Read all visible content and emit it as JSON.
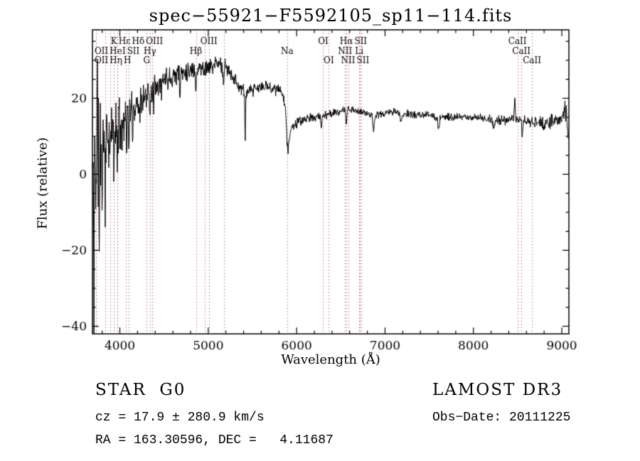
{
  "title": "spec−55921−F5592105_sp11−114.fits",
  "annotations": {
    "object_class": "STAR  G0",
    "survey": "LAMOST DR3",
    "cz_line": "cz = 17.9 ± 280.9 km/s",
    "obs_date": "Obs−Date: 20111225",
    "ra_dec": "RA = 163.30596, DEC =   4.11687"
  },
  "chart_data": {
    "type": "line",
    "title": "spec−55921−F5592105_sp11−114.fits",
    "xlabel": "Wavelength (Å)",
    "ylabel": "Flux (relative)",
    "xlim": [
      3690,
      9080
    ],
    "ylim": [
      -42,
      38
    ],
    "xticks": [
      4000,
      5000,
      6000,
      7000,
      8000,
      9000
    ],
    "yticks": [
      -40,
      -20,
      0,
      20
    ],
    "x_minor_step": 200,
    "y_minor_step": 5,
    "grid": false,
    "legend": "none",
    "line_color": "#000000",
    "marker_line_color": "#c06a6a",
    "label_color": "#000000",
    "background": "#ffffff",
    "noise_seed": 11,
    "sample_step_angstrom": 4,
    "continuum": [
      [
        3690,
        0
      ],
      [
        3720,
        3
      ],
      [
        3760,
        6
      ],
      [
        3800,
        8
      ],
      [
        3850,
        10
      ],
      [
        3900,
        11
      ],
      [
        3950,
        12
      ],
      [
        4000,
        13
      ],
      [
        4050,
        15
      ],
      [
        4100,
        16
      ],
      [
        4150,
        17
      ],
      [
        4200,
        19
      ],
      [
        4250,
        20
      ],
      [
        4300,
        21
      ],
      [
        4350,
        22
      ],
      [
        4400,
        24
      ],
      [
        4500,
        25
      ],
      [
        4600,
        26
      ],
      [
        4700,
        27
      ],
      [
        4800,
        27.5
      ],
      [
        4900,
        28
      ],
      [
        5000,
        28
      ],
      [
        5100,
        29
      ],
      [
        5150,
        29
      ],
      [
        5200,
        28
      ],
      [
        5250,
        27
      ],
      [
        5300,
        25
      ],
      [
        5350,
        23
      ],
      [
        5400,
        22
      ],
      [
        5450,
        21.5
      ],
      [
        5500,
        22
      ],
      [
        5550,
        22.5
      ],
      [
        5600,
        23
      ],
      [
        5700,
        23
      ],
      [
        5800,
        22
      ],
      [
        5850,
        21
      ],
      [
        5880,
        17
      ],
      [
        5900,
        9
      ],
      [
        5920,
        10.5
      ],
      [
        5950,
        12.5
      ],
      [
        6000,
        13.5
      ],
      [
        6100,
        14.5
      ],
      [
        6200,
        15
      ],
      [
        6300,
        15.5
      ],
      [
        6400,
        16
      ],
      [
        6500,
        16.5
      ],
      [
        6600,
        17
      ],
      [
        6700,
        16.5
      ],
      [
        6800,
        16
      ],
      [
        6900,
        15.5
      ],
      [
        7000,
        16
      ],
      [
        7100,
        16.5
      ],
      [
        7200,
        16
      ],
      [
        7300,
        15.8
      ],
      [
        7400,
        15.5
      ],
      [
        7500,
        15.5
      ],
      [
        7600,
        15.2
      ],
      [
        7700,
        15
      ],
      [
        7800,
        15
      ],
      [
        7900,
        15
      ],
      [
        8000,
        15
      ],
      [
        8100,
        14.8
      ],
      [
        8200,
        14.5
      ],
      [
        8300,
        14.2
      ],
      [
        8400,
        14
      ],
      [
        8500,
        14.5
      ],
      [
        8600,
        14
      ],
      [
        8700,
        13.5
      ],
      [
        8800,
        13.5
      ],
      [
        8900,
        14
      ],
      [
        8960,
        14.5
      ],
      [
        9000,
        14.5
      ],
      [
        9040,
        17
      ],
      [
        9060,
        14
      ],
      [
        9080,
        5
      ]
    ],
    "noise_envelope": [
      [
        3690,
        26
      ],
      [
        3720,
        24
      ],
      [
        3760,
        20
      ],
      [
        3800,
        15
      ],
      [
        3850,
        12
      ],
      [
        3900,
        10
      ],
      [
        3950,
        9
      ],
      [
        4000,
        8
      ],
      [
        4100,
        6
      ],
      [
        4200,
        5
      ],
      [
        4300,
        4.5
      ],
      [
        4400,
        4
      ],
      [
        4600,
        3.5
      ],
      [
        4800,
        3
      ],
      [
        5000,
        2.8
      ],
      [
        5200,
        2.5
      ],
      [
        5400,
        2.2
      ],
      [
        5600,
        2
      ],
      [
        5800,
        1.8
      ],
      [
        6000,
        1.6
      ],
      [
        6200,
        1.4
      ],
      [
        6500,
        1.2
      ],
      [
        7000,
        1.1
      ],
      [
        7500,
        1.2
      ],
      [
        8000,
        1.3
      ],
      [
        8400,
        1.6
      ],
      [
        8700,
        2
      ],
      [
        8900,
        2.6
      ],
      [
        9000,
        3
      ],
      [
        9080,
        4
      ]
    ],
    "features": [
      [
        3706,
        -42,
        3
      ],
      [
        3745,
        18,
        2.5
      ],
      [
        3768,
        -30,
        3
      ],
      [
        3800,
        -16,
        2.5
      ],
      [
        3835,
        -14,
        3
      ],
      [
        3890,
        -12,
        3
      ],
      [
        3934,
        -10,
        4
      ],
      [
        3970,
        -9,
        4
      ],
      [
        4026,
        -8,
        3
      ],
      [
        4077,
        -7,
        3
      ],
      [
        4102,
        -7,
        5
      ],
      [
        4144,
        -6,
        3
      ],
      [
        4227,
        -7,
        3
      ],
      [
        4260,
        -5,
        3
      ],
      [
        4340,
        -6,
        5
      ],
      [
        4383,
        -6,
        3
      ],
      [
        4471,
        -5,
        3
      ],
      [
        4680,
        -8,
        4
      ],
      [
        4861,
        -5,
        6
      ],
      [
        5170,
        -4,
        8
      ],
      [
        5418,
        -14,
        4
      ],
      [
        5893,
        -4,
        12
      ],
      [
        6280,
        -3.5,
        5
      ],
      [
        6563,
        -3.5,
        5
      ],
      [
        6870,
        -4,
        8
      ],
      [
        7180,
        -2,
        12
      ],
      [
        7605,
        -3,
        10
      ],
      [
        8230,
        -2,
        10
      ],
      [
        8468,
        7,
        5
      ],
      [
        8552,
        -4,
        6
      ],
      [
        8800,
        -2,
        8
      ]
    ],
    "spectral_lines": [
      {
        "wavelength": 3727,
        "label": "OII",
        "row": 2
      },
      {
        "wavelength": 3729,
        "label": "OII",
        "row": 3
      },
      {
        "wavelength": 3835,
        "label": "Hη",
        "row": 3
      },
      {
        "wavelength": 3889,
        "label": "HeI",
        "row": 2
      },
      {
        "wavelength": 3934,
        "label": "K",
        "row": 1
      },
      {
        "wavelength": 3968,
        "label": "H",
        "row": 3
      },
      {
        "wavelength": 3970,
        "label": "Hε",
        "row": 1
      },
      {
        "wavelength": 4072,
        "label": "SII",
        "row": 2
      },
      {
        "wavelength": 4102,
        "label": "Hδ",
        "row": 1
      },
      {
        "wavelength": 4304,
        "label": "G",
        "row": 3
      },
      {
        "wavelength": 4340,
        "label": "Hγ",
        "row": 2
      },
      {
        "wavelength": 4363,
        "label": "OIII",
        "row": 1
      },
      {
        "wavelength": 4861,
        "label": "Hβ",
        "row": 2
      },
      {
        "wavelength": 4959,
        "label": "",
        "row": 0
      },
      {
        "wavelength": 5007,
        "label": "OIII",
        "row": 1
      },
      {
        "wavelength": 5175,
        "label": "",
        "row": 0
      },
      {
        "wavelength": 5893,
        "label": "Na",
        "row": 2
      },
      {
        "wavelength": 6300,
        "label": "OI",
        "row": 1
      },
      {
        "wavelength": 6364,
        "label": "OI",
        "row": 3
      },
      {
        "wavelength": 6548,
        "label": "NII",
        "row": 2
      },
      {
        "wavelength": 6563,
        "label": "Hα",
        "row": 1
      },
      {
        "wavelength": 6583,
        "label": "NII",
        "row": 3
      },
      {
        "wavelength": 6708,
        "label": "Li",
        "row": 2
      },
      {
        "wavelength": 6716,
        "label": "SII",
        "row": 1
      },
      {
        "wavelength": 6731,
        "label": "SII",
        "row": 3
      },
      {
        "wavelength": 8498,
        "label": "CaII",
        "row": 1
      },
      {
        "wavelength": 8542,
        "label": "CaII",
        "row": 2
      },
      {
        "wavelength": 8662,
        "label": "CaII",
        "row": 3
      }
    ]
  }
}
